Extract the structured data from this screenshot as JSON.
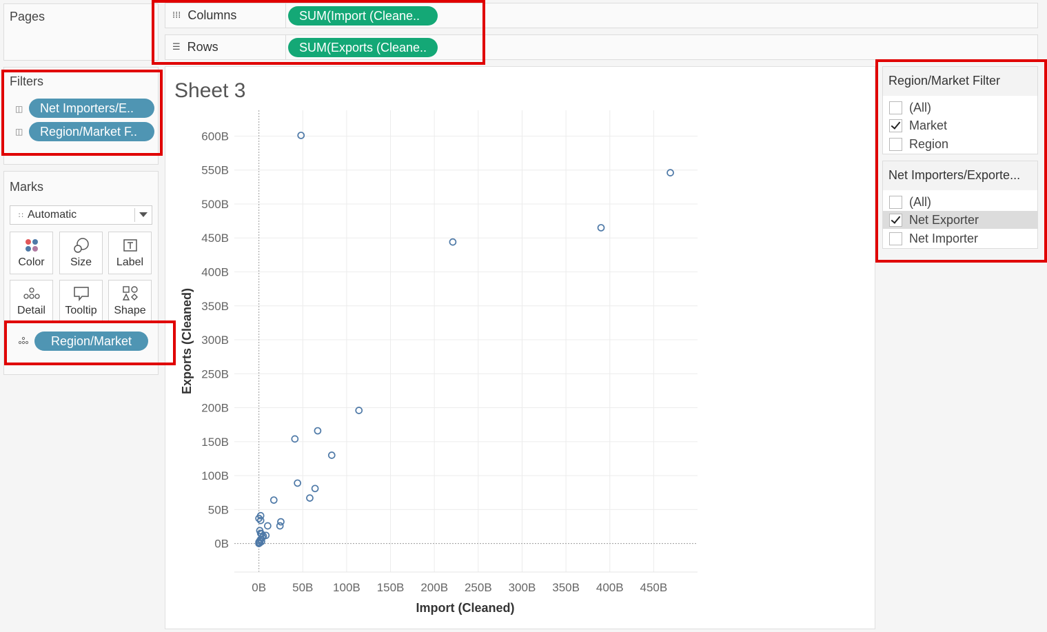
{
  "pages": {
    "title": "Pages"
  },
  "shelves": {
    "columns": {
      "label": "Columns",
      "pill": "SUM(Import (Cleane.."
    },
    "rows": {
      "label": "Rows",
      "pill": "SUM(Exports (Cleane.."
    }
  },
  "filters": {
    "title": "Filters",
    "items": [
      {
        "label": "Net Importers/E.."
      },
      {
        "label": "Region/Market F.."
      }
    ]
  },
  "marks": {
    "title": "Marks",
    "type": "Automatic",
    "buttons": [
      {
        "label": "Color",
        "icon": "color-icon"
      },
      {
        "label": "Size",
        "icon": "size-icon"
      },
      {
        "label": "Label",
        "icon": "label-icon"
      },
      {
        "label": "Detail",
        "icon": "detail-icon"
      },
      {
        "label": "Tooltip",
        "icon": "tooltip-icon"
      },
      {
        "label": "Shape",
        "icon": "shape-icon"
      }
    ],
    "detail_pill": "Region/Market"
  },
  "sheet": {
    "title": "Sheet 3"
  },
  "chart_data": {
    "type": "scatter",
    "xlabel": "Import (Cleaned)",
    "ylabel": "Exports (Cleaned)",
    "xlim": [
      -28,
      500
    ],
    "ylim": [
      -42,
      638
    ],
    "xticks": [
      0,
      50,
      100,
      150,
      200,
      250,
      300,
      350,
      400,
      450
    ],
    "xtick_labels": [
      "0B",
      "50B",
      "100B",
      "150B",
      "200B",
      "250B",
      "300B",
      "350B",
      "400B",
      "450B"
    ],
    "yticks": [
      0,
      50,
      100,
      150,
      200,
      250,
      300,
      350,
      400,
      450,
      500,
      550,
      600
    ],
    "ytick_labels": [
      "0B",
      "50B",
      "100B",
      "150B",
      "200B",
      "250B",
      "300B",
      "350B",
      "400B",
      "450B",
      "500B",
      "550B",
      "600B"
    ],
    "grid": true,
    "marker_color": "#4e79a7",
    "points": [
      [
        48,
        601
      ],
      [
        469,
        546
      ],
      [
        221,
        444
      ],
      [
        390,
        465
      ],
      [
        114,
        196
      ],
      [
        67,
        166
      ],
      [
        41,
        154
      ],
      [
        83,
        130
      ],
      [
        44,
        89
      ],
      [
        64,
        81
      ],
      [
        58,
        67
      ],
      [
        17,
        64
      ],
      [
        25,
        32
      ],
      [
        24,
        26
      ],
      [
        10,
        26
      ],
      [
        8,
        12
      ],
      [
        2,
        41
      ],
      [
        0,
        37
      ],
      [
        2,
        34
      ],
      [
        1,
        19
      ],
      [
        3,
        14
      ],
      [
        4,
        9
      ],
      [
        2,
        6
      ],
      [
        1,
        4
      ],
      [
        0,
        2
      ],
      [
        1,
        1
      ],
      [
        3,
        3
      ],
      [
        0,
        0
      ],
      [
        5,
        11
      ],
      [
        2,
        15
      ]
    ]
  },
  "region_filter": {
    "title": "Region/Market Filter",
    "options": [
      {
        "label": "(All)",
        "checked": false
      },
      {
        "label": "Market",
        "checked": true
      },
      {
        "label": "Region",
        "checked": false
      }
    ]
  },
  "net_filter": {
    "title": "Net Importers/Exporte...",
    "options": [
      {
        "label": "(All)",
        "checked": false
      },
      {
        "label": "Net Exporter",
        "checked": true
      },
      {
        "label": "Net Importer",
        "checked": false
      }
    ]
  }
}
